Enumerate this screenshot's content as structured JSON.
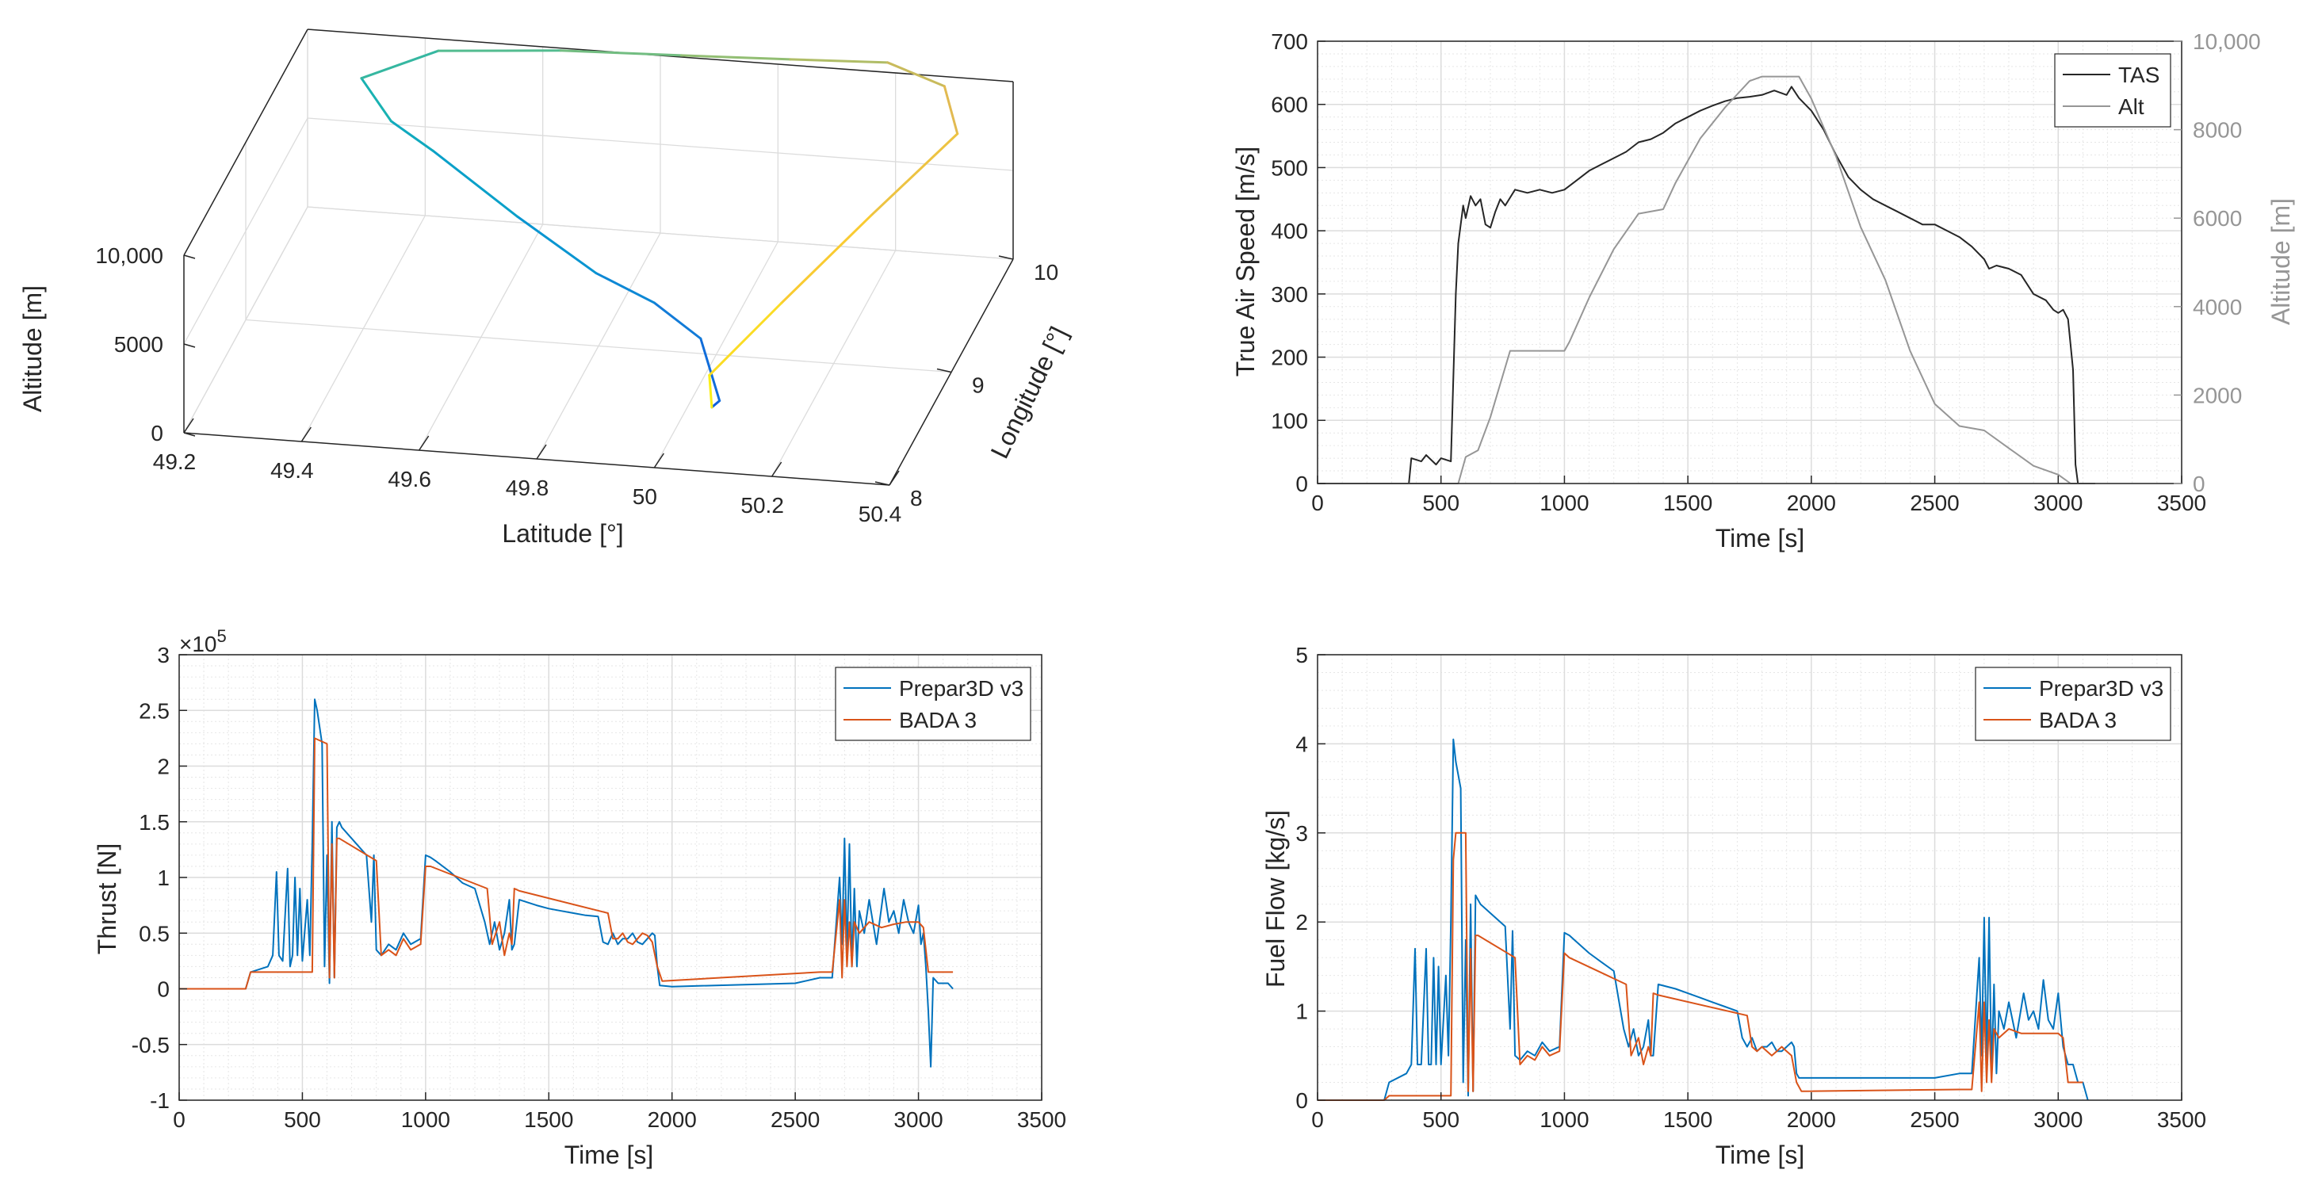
{
  "colors": {
    "blue": "#0072BD",
    "orange": "#D95319",
    "tas": "#262626",
    "alt": "#969696",
    "grid": "#dcdcdc",
    "axis": "#262626"
  },
  "chart_data": [
    {
      "type": "line3d",
      "title": "",
      "xlabel": "Latitude [°]",
      "ylabel": "Longitude [°]",
      "zlabel": "Altitude [m]",
      "xticks": [
        "49.2",
        "49.4",
        "49.6",
        "49.8",
        "50",
        "50.2",
        "50.4"
      ],
      "yticks": [
        "8",
        "9",
        "10"
      ],
      "zticks": [
        "0",
        "5000",
        "10,000"
      ],
      "xlim": [
        49.2,
        50.4
      ],
      "ylim": [
        8,
        10
      ],
      "zlim": [
        0,
        10000
      ],
      "colormap": "parula (by time)",
      "trajectory": {
        "lat": [
          50.04,
          50.05,
          50.0,
          49.9,
          49.78,
          49.62,
          49.45,
          49.36,
          49.3,
          49.42,
          49.62,
          49.82,
          50.0,
          50.16,
          50.26,
          50.3,
          50.2,
          50.1,
          50.02,
          50.04
        ],
        "lon": [
          8.55,
          8.58,
          8.75,
          8.95,
          9.15,
          9.4,
          9.65,
          9.83,
          9.92,
          10.02,
          10.1,
          10.15,
          10.2,
          10.25,
          10.22,
          10.05,
          9.6,
          9.1,
          8.7,
          8.55
        ],
        "alt": [
          0,
          200,
          2500,
          3000,
          3100,
          4300,
          6000,
          6300,
          8000,
          9200,
          9200,
          9100,
          9000,
          8900,
          8000,
          6500,
          4500,
          2500,
          800,
          0
        ]
      }
    },
    {
      "type": "line",
      "xlabel": "Time [s]",
      "ylabel": "True Air Speed [m/s]",
      "y2label": "Altitude [m]",
      "xlim": [
        0,
        3500
      ],
      "ylim": [
        0,
        700
      ],
      "y2lim": [
        0,
        10000
      ],
      "xticks": [
        "0",
        "500",
        "1000",
        "1500",
        "2000",
        "2500",
        "3000",
        "3500"
      ],
      "yticks": [
        "0",
        "100",
        "200",
        "300",
        "400",
        "500",
        "600",
        "700"
      ],
      "y2ticks": [
        "0",
        "2000",
        "4000",
        "6000",
        "8000",
        "10,000"
      ],
      "legend": "top-right",
      "series": [
        {
          "name": "TAS",
          "axis": "left",
          "x": [
            0,
            370,
            380,
            420,
            440,
            480,
            500,
            540,
            560,
            570,
            590,
            600,
            620,
            640,
            660,
            680,
            700,
            720,
            740,
            760,
            800,
            850,
            900,
            950,
            1000,
            1050,
            1100,
            1150,
            1200,
            1250,
            1300,
            1350,
            1400,
            1450,
            1500,
            1550,
            1600,
            1650,
            1700,
            1750,
            1800,
            1850,
            1900,
            1920,
            1950,
            2000,
            2050,
            2100,
            2150,
            2200,
            2250,
            2300,
            2350,
            2400,
            2450,
            2500,
            2550,
            2600,
            2650,
            2700,
            2720,
            2750,
            2800,
            2850,
            2900,
            2950,
            2980,
            3000,
            3020,
            3040,
            3060,
            3070,
            3080,
            3150
          ],
          "values": [
            0,
            0,
            40,
            35,
            45,
            30,
            40,
            35,
            300,
            380,
            440,
            420,
            455,
            440,
            450,
            410,
            405,
            430,
            450,
            440,
            465,
            460,
            465,
            460,
            465,
            480,
            495,
            505,
            515,
            525,
            540,
            545,
            555,
            570,
            580,
            590,
            598,
            605,
            610,
            612,
            615,
            622,
            615,
            628,
            610,
            590,
            560,
            520,
            485,
            465,
            450,
            440,
            430,
            420,
            410,
            410,
            400,
            390,
            375,
            355,
            340,
            345,
            340,
            330,
            300,
            290,
            275,
            270,
            275,
            260,
            180,
            30,
            0,
            0
          ]
        },
        {
          "name": "Alt",
          "axis": "right",
          "x": [
            0,
            540,
            570,
            600,
            650,
            700,
            780,
            1000,
            1020,
            1100,
            1200,
            1300,
            1400,
            1450,
            1550,
            1650,
            1700,
            1750,
            1800,
            1950,
            2000,
            2100,
            2200,
            2300,
            2400,
            2500,
            2600,
            2700,
            2800,
            2900,
            3000,
            3050,
            3150
          ],
          "values": [
            0,
            0,
            0,
            600,
            750,
            1500,
            3000,
            3000,
            3200,
            4200,
            5300,
            6100,
            6200,
            6800,
            7800,
            8500,
            8800,
            9100,
            9200,
            9200,
            8700,
            7400,
            5800,
            4600,
            3000,
            1800,
            1300,
            1200,
            800,
            400,
            200,
            0,
            0
          ]
        }
      ]
    },
    {
      "type": "line",
      "xlabel": "Time [s]",
      "ylabel": "Thrust [N]",
      "exponent": "×10",
      "exponent_power": "5",
      "xlim": [
        0,
        3500
      ],
      "ylim": [
        -1,
        3
      ],
      "xticks": [
        "0",
        "500",
        "1000",
        "1500",
        "2000",
        "2500",
        "3000",
        "3500"
      ],
      "yticks": [
        "-1",
        "-0.5",
        "0",
        "0.5",
        "1",
        "1.5",
        "2",
        "2.5",
        "3"
      ],
      "legend": "top-right",
      "series": [
        {
          "name": "Prepar3D v3",
          "x": [
            0,
            270,
            290,
            360,
            380,
            395,
            405,
            420,
            440,
            450,
            460,
            470,
            480,
            490,
            500,
            520,
            530,
            540,
            550,
            560,
            580,
            590,
            600,
            610,
            620,
            630,
            640,
            650,
            660,
            680,
            700,
            720,
            760,
            780,
            790,
            800,
            820,
            850,
            880,
            910,
            940,
            980,
            1000,
            1020,
            1040,
            1100,
            1150,
            1200,
            1240,
            1260,
            1280,
            1300,
            1320,
            1340,
            1350,
            1360,
            1380,
            1450,
            1500,
            1550,
            1600,
            1650,
            1700,
            1720,
            1740,
            1760,
            1780,
            1800,
            1820,
            1840,
            1860,
            1880,
            1900,
            1920,
            1930,
            1940,
            1950,
            2000,
            2500,
            2600,
            2650,
            2680,
            2690,
            2700,
            2710,
            2720,
            2730,
            2740,
            2750,
            2760,
            2780,
            2800,
            2830,
            2860,
            2880,
            2900,
            2920,
            2940,
            2960,
            2980,
            3000,
            3010,
            3020,
            3030,
            3040,
            3050,
            3060,
            3080,
            3100,
            3120,
            3140
          ],
          "values": [
            0,
            0,
            0.15,
            0.2,
            0.3,
            1.05,
            0.3,
            0.25,
            1.08,
            0.2,
            0.3,
            1.0,
            0.3,
            0.9,
            0.25,
            0.8,
            0.3,
            1.3,
            2.6,
            2.5,
            2.2,
            0.2,
            1.2,
            0.05,
            1.5,
            0.1,
            1.45,
            1.5,
            1.45,
            1.4,
            1.35,
            1.3,
            1.2,
            0.6,
            1.2,
            0.35,
            0.3,
            0.4,
            0.35,
            0.5,
            0.4,
            0.45,
            1.2,
            1.18,
            1.15,
            1.05,
            0.95,
            0.9,
            0.6,
            0.4,
            0.6,
            0.35,
            0.5,
            0.8,
            0.35,
            0.4,
            0.8,
            0.75,
            0.72,
            0.7,
            0.68,
            0.66,
            0.65,
            0.42,
            0.4,
            0.5,
            0.4,
            0.45,
            0.45,
            0.5,
            0.42,
            0.4,
            0.45,
            0.5,
            0.48,
            0.2,
            0.03,
            0.02,
            0.05,
            0.1,
            0.1,
            1.0,
            0.4,
            1.35,
            0.3,
            1.3,
            0.2,
            0.9,
            0.2,
            0.7,
            0.5,
            0.8,
            0.4,
            0.9,
            0.6,
            0.7,
            0.5,
            0.8,
            0.6,
            0.5,
            0.75,
            0.4,
            0.5,
            0.2,
            -0.2,
            -0.7,
            0.1,
            0.05,
            0.05,
            0.05,
            0.0
          ]
        },
        {
          "name": "BADA 3",
          "x": [
            0,
            270,
            290,
            540,
            550,
            600,
            610,
            620,
            630,
            640,
            650,
            800,
            820,
            850,
            880,
            910,
            940,
            980,
            1000,
            1020,
            1250,
            1270,
            1300,
            1320,
            1340,
            1350,
            1360,
            1380,
            1740,
            1760,
            1780,
            1800,
            1820,
            1840,
            1860,
            1880,
            1900,
            1920,
            1940,
            1960,
            2600,
            2650,
            2680,
            2690,
            2700,
            2710,
            2720,
            2730,
            2740,
            2760,
            2800,
            2850,
            2900,
            2950,
            3000,
            3020,
            3040,
            3060,
            3140
          ],
          "values": [
            0,
            0,
            0.15,
            0.15,
            2.25,
            2.2,
            0.1,
            1.3,
            0.1,
            1.35,
            1.35,
            1.15,
            0.3,
            0.35,
            0.3,
            0.45,
            0.35,
            0.4,
            1.1,
            1.1,
            0.9,
            0.4,
            0.6,
            0.3,
            0.5,
            0.4,
            0.9,
            0.88,
            0.68,
            0.45,
            0.45,
            0.5,
            0.42,
            0.4,
            0.45,
            0.5,
            0.48,
            0.42,
            0.2,
            0.07,
            0.15,
            0.15,
            0.8,
            0.1,
            0.8,
            0.2,
            0.6,
            0.2,
            0.6,
            0.5,
            0.6,
            0.55,
            0.58,
            0.6,
            0.6,
            0.55,
            0.15,
            0.15,
            0.15
          ]
        }
      ]
    },
    {
      "type": "line",
      "xlabel": "Time [s]",
      "ylabel": "Fuel Flow [kg/s]",
      "xlim": [
        0,
        3500
      ],
      "ylim": [
        0,
        5
      ],
      "xticks": [
        "0",
        "500",
        "1000",
        "1500",
        "2000",
        "2500",
        "3000",
        "3500"
      ],
      "yticks": [
        "0",
        "1",
        "2",
        "3",
        "4",
        "5"
      ],
      "legend": "top-right",
      "series": [
        {
          "name": "Prepar3D v3",
          "x": [
            0,
            270,
            290,
            360,
            380,
            395,
            405,
            420,
            440,
            450,
            460,
            470,
            480,
            490,
            500,
            520,
            530,
            540,
            550,
            560,
            580,
            590,
            600,
            610,
            620,
            630,
            640,
            650,
            660,
            700,
            760,
            780,
            790,
            800,
            820,
            850,
            880,
            910,
            940,
            980,
            1000,
            1020,
            1040,
            1100,
            1150,
            1200,
            1240,
            1260,
            1280,
            1300,
            1320,
            1340,
            1350,
            1360,
            1380,
            1450,
            1500,
            1550,
            1600,
            1650,
            1700,
            1720,
            1740,
            1760,
            1780,
            1800,
            1820,
            1840,
            1860,
            1880,
            1900,
            1920,
            1930,
            1940,
            1950,
            2000,
            2500,
            2600,
            2650,
            2680,
            2690,
            2700,
            2710,
            2720,
            2730,
            2740,
            2750,
            2760,
            2780,
            2800,
            2830,
            2860,
            2880,
            2900,
            2920,
            2940,
            2960,
            2980,
            3000,
            3020,
            3040,
            3060,
            3080,
            3100,
            3120
          ],
          "values": [
            0,
            0,
            0.2,
            0.3,
            0.4,
            1.7,
            0.4,
            0.4,
            1.7,
            0.4,
            0.4,
            1.6,
            0.4,
            1.5,
            0.4,
            1.4,
            0.5,
            2.0,
            4.05,
            3.8,
            3.5,
            0.2,
            1.8,
            0.05,
            2.2,
            0.1,
            2.3,
            2.25,
            2.2,
            2.1,
            1.95,
            0.8,
            1.9,
            0.5,
            0.45,
            0.55,
            0.5,
            0.65,
            0.55,
            0.6,
            1.88,
            1.85,
            1.8,
            1.65,
            1.55,
            1.45,
            0.8,
            0.6,
            0.8,
            0.5,
            0.6,
            0.9,
            0.5,
            0.5,
            1.3,
            1.25,
            1.2,
            1.15,
            1.1,
            1.05,
            1.0,
            0.7,
            0.6,
            0.7,
            0.55,
            0.6,
            0.6,
            0.65,
            0.55,
            0.55,
            0.6,
            0.65,
            0.6,
            0.3,
            0.25,
            0.25,
            0.25,
            0.3,
            0.3,
            1.6,
            0.5,
            2.05,
            0.4,
            2.05,
            0.3,
            1.3,
            0.3,
            1.0,
            0.8,
            1.1,
            0.7,
            1.2,
            0.9,
            1.0,
            0.8,
            1.35,
            0.9,
            0.8,
            1.2,
            0.6,
            0.4,
            0.4,
            0.2,
            0.2,
            0.0
          ]
        },
        {
          "name": "BADA 3",
          "x": [
            0,
            270,
            290,
            540,
            550,
            560,
            600,
            610,
            620,
            630,
            640,
            650,
            800,
            820,
            850,
            880,
            910,
            940,
            980,
            1000,
            1020,
            1250,
            1270,
            1300,
            1320,
            1340,
            1350,
            1360,
            1380,
            1740,
            1760,
            1780,
            1800,
            1820,
            1840,
            1860,
            1880,
            1900,
            1920,
            1940,
            1960,
            2600,
            2650,
            2680,
            2690,
            2700,
            2710,
            2720,
            2730,
            2740,
            2760,
            2800,
            2850,
            2900,
            2950,
            3000,
            3020,
            3040,
            3060,
            3100
          ],
          "values": [
            0,
            0,
            0.05,
            0.05,
            2.7,
            3.0,
            3.0,
            0.1,
            1.7,
            0.1,
            1.85,
            1.85,
            1.6,
            0.4,
            0.5,
            0.45,
            0.6,
            0.5,
            0.55,
            1.65,
            1.6,
            1.3,
            0.5,
            0.7,
            0.4,
            0.6,
            0.5,
            1.2,
            1.18,
            0.95,
            0.6,
            0.55,
            0.6,
            0.55,
            0.5,
            0.55,
            0.6,
            0.55,
            0.5,
            0.2,
            0.1,
            0.12,
            0.12,
            1.1,
            0.1,
            1.1,
            0.2,
            0.9,
            0.2,
            0.8,
            0.7,
            0.8,
            0.75,
            0.75,
            0.75,
            0.75,
            0.7,
            0.2,
            0.2,
            0.2
          ]
        }
      ]
    }
  ]
}
